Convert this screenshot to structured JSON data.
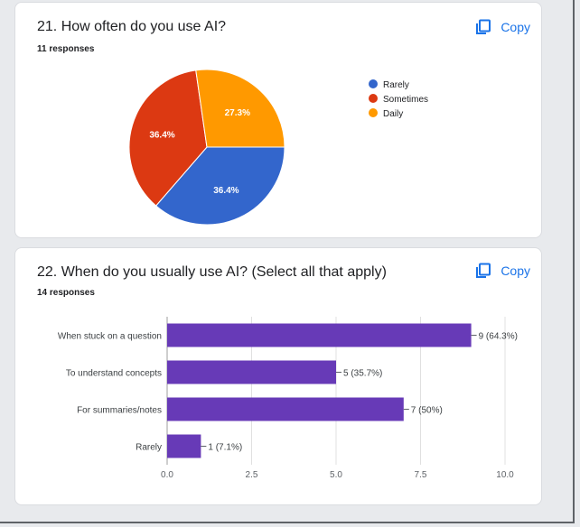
{
  "questions": [
    {
      "title": "21. How often do you use AI?",
      "responses": "11 responses",
      "copy_label": "Copy"
    },
    {
      "title": "22. When do you usually use AI? (Select all that apply)",
      "responses": "14 responses",
      "copy_label": "Copy"
    }
  ],
  "chart_data": [
    {
      "type": "pie",
      "categories": [
        "Rarely",
        "Sometimes",
        "Daily"
      ],
      "values": [
        36.4,
        36.4,
        27.3
      ],
      "labels": [
        "36.4%",
        "36.4%",
        "27.3%"
      ],
      "colors": [
        "#3366cc",
        "#dc3912",
        "#ff9900"
      ],
      "legend": "right"
    },
    {
      "type": "bar",
      "orientation": "horizontal",
      "categories": [
        "When stuck on a question",
        "To understand concepts",
        "For summaries/notes",
        "Rarely"
      ],
      "values": [
        9,
        5,
        7,
        1
      ],
      "labels": [
        "9 (64.3%)",
        "5 (35.7%)",
        "7 (50%)",
        "1 (7.1%)"
      ],
      "xlim": [
        0,
        10
      ],
      "ticks": [
        "0.0",
        "2.5",
        "5.0",
        "7.5",
        "10.0"
      ],
      "color": "#673ab7",
      "grid": true
    }
  ]
}
